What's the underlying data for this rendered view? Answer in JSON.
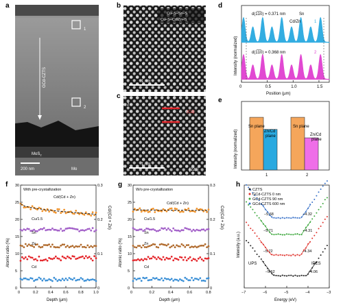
{
  "panels": {
    "a": {
      "label": "a",
      "layer_label": "GCd-CZTS",
      "box1": "1",
      "box2": "2",
      "mos2_label_main": "MoS",
      "mos2_label_sub": "2",
      "mo_label": "Mo",
      "scalebar": "200 nm"
    },
    "b": {
      "label": "b",
      "index": "1",
      "legend_line1": "Cu–S–Sn–S",
      "legend_line2": "Cu–S–Cd/Zn–S",
      "scalebar": "1 nm"
    },
    "c": {
      "label": "c",
      "index": "2",
      "annotation": "(Cd)",
      "scalebar": "1 nm",
      "zone_axis": "[221]"
    },
    "d": {
      "label": "d",
      "top_dspacing": "d(1̅1̅0) = 0.371 nm",
      "top_sn": "Sn",
      "top_cdzn": "Cd/Zn",
      "top_index": "1",
      "bottom_dspacing": "d(1̅1̅0) = 0.368 nm",
      "bottom_index": "2",
      "xlabel": "Position (µm)",
      "ylabel": "Intensity (normalized)",
      "xticks": [
        "0",
        "0.5",
        "1.0",
        "1.5"
      ]
    },
    "e": {
      "label": "e",
      "ylabel": "Intensity (normalized)",
      "sn_plane_1": "Sn plane",
      "zncd_plane_1a": "Zn/Cd",
      "zncd_plane_1b": "plane",
      "sn_plane_2": "Sn plane",
      "zncd_plane_2a": "Zn/Cd",
      "zncd_plane_2b": "plane",
      "xcats": [
        "1",
        "2"
      ]
    },
    "f": {
      "label": "f",
      "subtitle": "With pre-crystallization",
      "ratio_label": "Cd/(Cd + Zn)",
      "cu_label": "Cu/1.5",
      "sn_label": "Sn",
      "zn_label": "Zn",
      "cd_label": "Cd",
      "ylabel_left": "Atomic ratio (%)",
      "ylabel_right": "Cd/(Cd + Zn)",
      "xlabel": "Depth (µm)",
      "left_ticks": [
        "0",
        "5",
        "10",
        "15",
        "20",
        "25",
        "30"
      ],
      "right_ticks": [
        "0",
        "0.1",
        "0.2",
        "0.3"
      ],
      "xticks": [
        "0",
        "0.2",
        "0.4",
        "0.6",
        "0.8",
        "1.0"
      ]
    },
    "g": {
      "label": "g",
      "subtitle": "W/o pre-crystallization",
      "ratio_label": "Cd/(Cd + Zn)",
      "cu_label": "Cu/1.5",
      "sn_label": "Sn",
      "zn_label": "Zn",
      "cd_label": "Cd",
      "ylabel_left": "Atomic ratio (%)",
      "ylabel_right": "Cd/(Cd + Zn)",
      "xlabel": "Depth (µm)",
      "left_ticks": [
        "0",
        "5",
        "10",
        "15",
        "20",
        "25",
        "30"
      ],
      "right_ticks": [
        "0",
        "0.1",
        "0.2",
        "0.3"
      ],
      "xticks": [
        "0",
        "0.2",
        "0.4",
        "0.6",
        "0.8"
      ]
    },
    "h": {
      "label": "h",
      "legend": [
        "CZTS",
        "GCd-CZTS 0 nm",
        "GCd-CZTS 90 nm",
        "GCd-CZTS 600 nm"
      ],
      "values_left": [
        "−5.68",
        "−5.71",
        "−5.72",
        "−5.62"
      ],
      "values_right": [
        "−4.32",
        "−4.31",
        "−4.34",
        "−4.06"
      ],
      "ups": "UPS",
      "ipes": "IPES",
      "xlabel": "Energy (eV)",
      "ylabel": "Intensity (a.u.)",
      "xticks": [
        "−7",
        "−6",
        "−5",
        "−4",
        "−3"
      ]
    }
  },
  "colors": {
    "sn_peak": "#29a9e0",
    "cdzn_peak": "#e040d0",
    "bar_orange": "#f5a65b",
    "bar_blue": "#29a9e0",
    "bar_magenta": "#ef6ee8",
    "ratio_orange": "#f0922a",
    "cu_purple": "#a25fc8",
    "sn_brown": "#b06a2c",
    "zn_red": "#e4262b",
    "cd_blue": "#3a8fd6",
    "czts_black": "#222222",
    "gcd0_red": "#e0322c",
    "gcd90_green": "#3aa63a",
    "gcd600_blue": "#3670c8"
  },
  "chart_data": [
    {
      "type": "line",
      "panel": "d",
      "title": "",
      "xlabel": "Position (µm)",
      "ylabel": "Intensity (normalized)",
      "xlim": [
        0,
        1.7
      ],
      "series": [
        {
          "name": "1",
          "peak_positions": [
            0.04,
            0.22,
            0.41,
            0.59,
            0.78,
            0.97,
            1.15,
            1.34,
            1.53
          ],
          "peak_heights": [
            1.0,
            0.62,
            1.0,
            0.62,
            1.0,
            0.62,
            1.0,
            0.62,
            1.0
          ]
        },
        {
          "name": "2",
          "peak_positions": [
            0.04,
            0.22,
            0.41,
            0.59,
            0.78,
            0.97,
            1.15,
            1.34,
            1.53
          ],
          "peak_heights": [
            1.0,
            0.58,
            1.0,
            0.58,
            1.0,
            0.58,
            1.0,
            0.58,
            1.0
          ]
        }
      ]
    },
    {
      "type": "bar",
      "panel": "e",
      "ylabel": "Intensity (normalized)",
      "categories": [
        "1",
        "2"
      ],
      "ylim": [
        0,
        1.3
      ],
      "series": [
        {
          "name": "Sn plane",
          "values": [
            1.0,
            1.0
          ]
        },
        {
          "name": "Zn/Cd plane",
          "values": [
            0.77,
            0.61
          ]
        }
      ]
    },
    {
      "type": "scatter",
      "panel": "f",
      "xlabel": "Depth (µm)",
      "ylabel": "Atomic ratio (%)",
      "xlim": [
        0,
        1.0
      ],
      "ylim": [
        0,
        30
      ],
      "y2lim": [
        0,
        0.3
      ],
      "series": [
        {
          "name": "Cd/(Cd + Zn)",
          "axis": "right",
          "start": 0.246,
          "end": 0.215,
          "noise": 0.006
        },
        {
          "name": "Cu/1.5",
          "axis": "left",
          "mean": 17.0,
          "noise": 0.5
        },
        {
          "name": "Sn",
          "axis": "left",
          "mean": 12.3,
          "noise": 0.5
        },
        {
          "name": "Zn",
          "axis": "left",
          "mean": 8.6,
          "noise": 0.7
        },
        {
          "name": "Cd",
          "axis": "left",
          "mean": 2.5,
          "noise": 0.5
        }
      ]
    },
    {
      "type": "scatter",
      "panel": "g",
      "xlabel": "Depth (µm)",
      "ylabel": "Atomic ratio (%)",
      "xlim": [
        0,
        0.8
      ],
      "ylim": [
        0,
        30
      ],
      "y2lim": [
        0,
        0.3
      ],
      "series": [
        {
          "name": "Cd/(Cd + Zn)",
          "axis": "right",
          "start": 0.228,
          "end": 0.226,
          "noise": 0.006
        },
        {
          "name": "Cu/1.5",
          "axis": "left",
          "mean": 17.0,
          "noise": 0.5
        },
        {
          "name": "Sn",
          "axis": "left",
          "mean": 12.3,
          "noise": 0.5
        },
        {
          "name": "Zn",
          "axis": "left",
          "mean": 8.6,
          "noise": 0.7
        },
        {
          "name": "Cd",
          "axis": "left",
          "mean": 2.5,
          "noise": 0.5
        }
      ]
    },
    {
      "type": "line",
      "panel": "h",
      "xlabel": "Energy (eV)",
      "ylabel": "Intensity (a.u.)",
      "xlim": [
        -7,
        -3
      ],
      "series": [
        {
          "name": "CZTS",
          "vbm": -5.62,
          "cbm": -4.06,
          "offset": 0
        },
        {
          "name": "GCd-CZTS 0 nm",
          "vbm": -5.72,
          "cbm": -4.34,
          "offset": 1
        },
        {
          "name": "GCd-CZTS 90 nm",
          "vbm": -5.71,
          "cbm": -4.31,
          "offset": 2
        },
        {
          "name": "GCd-CZTS 600 nm",
          "vbm": -5.68,
          "cbm": -4.32,
          "offset": 3
        }
      ]
    }
  ]
}
